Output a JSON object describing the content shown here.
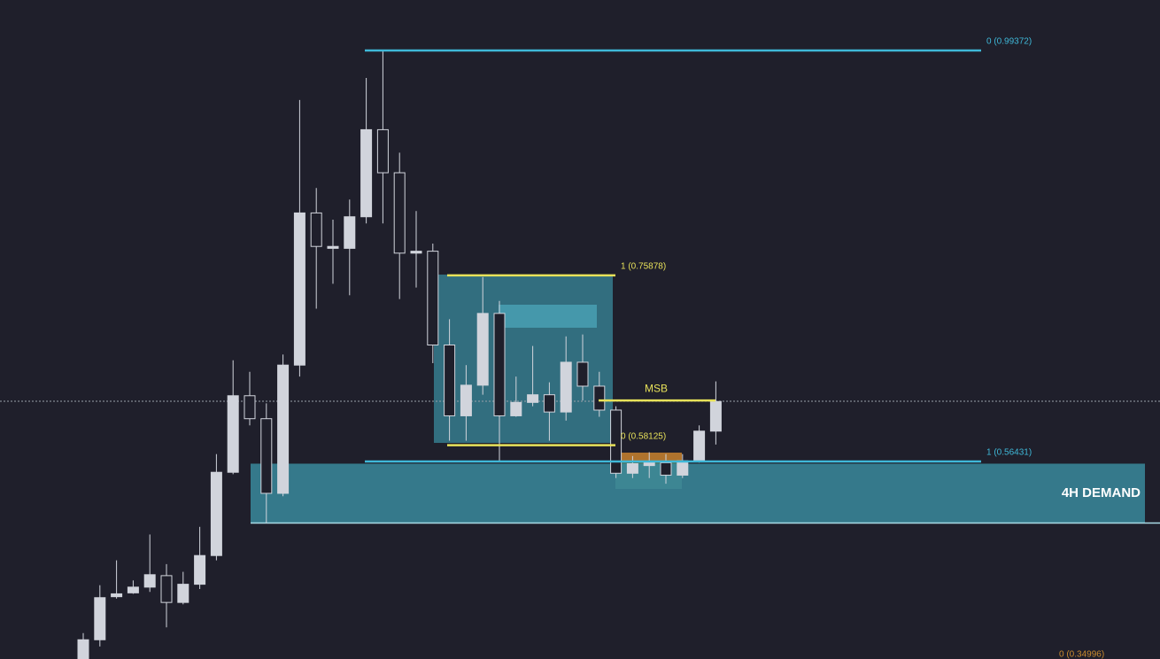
{
  "chart_data": {
    "type": "candlestick",
    "ylim": [
      0.3579,
      1.0465
    ],
    "candle_color": "#d1d4dc",
    "series": {
      "open": [
        0.358,
        0.378,
        0.423,
        0.427,
        0.433,
        0.445,
        0.417,
        0.436,
        0.466,
        0.553,
        0.633,
        0.609,
        0.531,
        0.665,
        0.824,
        0.787,
        0.787,
        0.82,
        0.911,
        0.866,
        0.782,
        0.784,
        0.686,
        0.612,
        0.644,
        0.719,
        0.612,
        0.626,
        0.634,
        0.616,
        0.668,
        0.643,
        0.618,
        0.552,
        0.56,
        0.563,
        0.55,
        0.565,
        0.596
      ],
      "high": [
        0.385,
        0.435,
        0.461,
        0.44,
        0.488,
        0.457,
        0.449,
        0.496,
        0.572,
        0.67,
        0.658,
        0.625,
        0.676,
        0.942,
        0.85,
        0.817,
        0.838,
        0.965,
        0.994,
        0.887,
        0.826,
        0.792,
        0.713,
        0.665,
        0.757,
        0.732,
        0.653,
        0.685,
        0.647,
        0.695,
        0.697,
        0.658,
        0.622,
        0.57,
        0.574,
        0.572,
        0.572,
        0.602,
        0.648
      ],
      "low": [
        0.358,
        0.371,
        0.421,
        0.426,
        0.428,
        0.391,
        0.415,
        0.431,
        0.461,
        0.551,
        0.602,
        0.5,
        0.528,
        0.653,
        0.724,
        0.75,
        0.738,
        0.813,
        0.813,
        0.734,
        0.746,
        0.667,
        0.586,
        0.586,
        0.634,
        0.565,
        0.611,
        0.622,
        0.586,
        0.607,
        0.628,
        0.611,
        0.547,
        0.547,
        0.547,
        0.541,
        0.547,
        0.563,
        0.582
      ],
      "close": [
        0.378,
        0.422,
        0.426,
        0.433,
        0.446,
        0.417,
        0.436,
        0.466,
        0.553,
        0.633,
        0.609,
        0.531,
        0.665,
        0.824,
        0.789,
        0.789,
        0.82,
        0.911,
        0.866,
        0.782,
        0.784,
        0.686,
        0.612,
        0.644,
        0.719,
        0.612,
        0.626,
        0.634,
        0.616,
        0.668,
        0.643,
        0.618,
        0.552,
        0.562,
        0.563,
        0.55,
        0.565,
        0.596,
        0.627
      ]
    },
    "levels": [
      {
        "label": "0 (0.99372)",
        "value": 0.99372,
        "color": "#3fb8d8"
      },
      {
        "label": "1 (0.75878)",
        "value": 0.75878,
        "color": "#e8e25a"
      },
      {
        "label": "0 (0.58125)",
        "value": 0.58125,
        "color": "#e8e25a"
      },
      {
        "label": "1 (0.56431)",
        "value": 0.56431,
        "color": "#3fb8d8"
      },
      {
        "label": "0 (0.34996)",
        "value": 0.34996,
        "color": "#c98a2e"
      }
    ],
    "msb": {
      "label": "MSB",
      "value": 0.628,
      "color": "#e8e25a"
    },
    "demand_zone": {
      "label": "4H DEMAND",
      "low": 0.5,
      "high": 0.562,
      "color": "#3a8a9c"
    }
  }
}
